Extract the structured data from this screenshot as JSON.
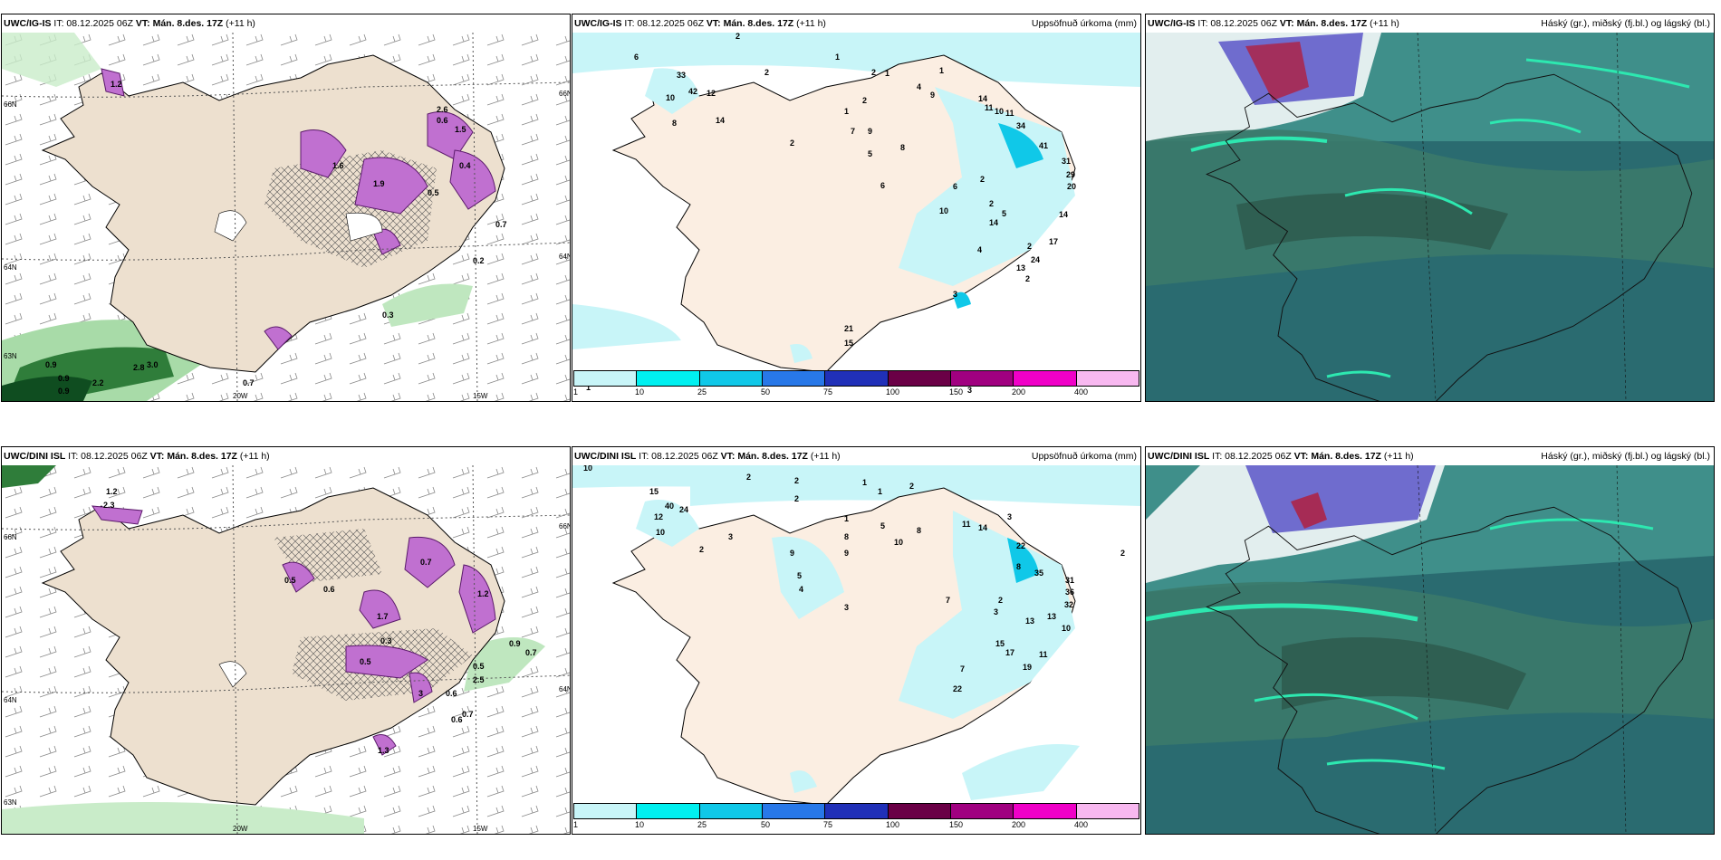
{
  "panels": [
    {
      "model": "UWC/IG-IS",
      "it": "IT: 08.12.2025 06Z",
      "vt_label": "VT:",
      "vt": "Mán. 8.des. 17Z",
      "lead": "(+11 h)",
      "right": ""
    },
    {
      "model": "UWC/IG-IS",
      "it": "IT: 08.12.2025 06Z",
      "vt_label": "VT:",
      "vt": "Mán. 8.des. 17Z",
      "lead": "(+11 h)",
      "right": "Uppsöfnuð úrkoma (mm)"
    },
    {
      "model": "UWC/IG-IS",
      "it": "IT: 08.12.2025 06Z",
      "vt_label": "VT:",
      "vt": "Mán. 8.des. 17Z",
      "lead": "(+11 h)",
      "right": "Háský (gr.), miðský (fj.bl.) og lágský (bl.)"
    },
    {
      "model": "UWC/DINI ISL",
      "it": "IT: 08.12.2025 06Z",
      "vt_label": "VT:",
      "vt": "Mán. 8.des. 17Z",
      "lead": "(+11 h)",
      "right": ""
    },
    {
      "model": "UWC/DINI ISL",
      "it": "IT: 08.12.2025 06Z",
      "vt_label": "VT:",
      "vt": "Mán. 8.des. 17Z",
      "lead": "(+11 h)",
      "right": "Uppsöfnuð úrkoma (mm)"
    },
    {
      "model": "UWC/DINI ISL",
      "it": "IT: 08.12.2025 06Z",
      "vt_label": "VT:",
      "vt": "Mán. 8.des. 17Z",
      "lead": "(+11 h)",
      "right": "Háský (gr.), miðský (fj.bl.) og lágský (bl.)"
    }
  ],
  "axes": {
    "lon_labels": [
      "20W",
      "15W"
    ],
    "lat_labels_left": [
      "66N",
      "64N",
      "63N"
    ],
    "lat_labels_right": [
      "66N",
      "64N"
    ]
  },
  "colorbar": {
    "ticks": [
      "1",
      "10",
      "25",
      "50",
      "75",
      "100",
      "150",
      "200",
      "400"
    ],
    "colors": [
      "#c8f5f8",
      "#00f0f0",
      "#10c8e8",
      "#2878e8",
      "#2030b8",
      "#6a0046",
      "#a00080",
      "#f000c8",
      "#f8b8f0"
    ]
  },
  "precip_labels_top": [
    "6",
    "2",
    "1",
    "1",
    "2",
    "2",
    "2",
    "1",
    "33",
    "42",
    "12",
    "10",
    "14",
    "8",
    "2",
    "1",
    "4",
    "7",
    "9",
    "5",
    "6",
    "8",
    "9",
    "14",
    "11",
    "10",
    "11",
    "34",
    "41",
    "31",
    "29",
    "20",
    "14",
    "17",
    "24",
    "13",
    "14",
    "2",
    "10",
    "6",
    "2",
    "2",
    "5",
    "4",
    "2",
    "3",
    "15",
    "21",
    "3",
    "1"
  ],
  "precip_labels_bottom": [
    "10",
    "2",
    "2",
    "1",
    "1",
    "2",
    "2",
    "15",
    "40",
    "24",
    "12",
    "10",
    "3",
    "2",
    "1",
    "8",
    "9",
    "5",
    "10",
    "8",
    "11",
    "14",
    "3",
    "22",
    "35",
    "31",
    "36",
    "32",
    "13",
    "10",
    "9",
    "5",
    "4",
    "7",
    "2",
    "8",
    "3",
    "7",
    "13",
    "11",
    "17",
    "19",
    "15",
    "22",
    "2",
    "3",
    "3"
  ],
  "snow_labels_top": [
    "0.9",
    "1.2",
    "0.9",
    "2.2",
    "2.8",
    "3.0",
    "0.9",
    "0.7",
    "1.6",
    "1.9",
    "0.5",
    "0.7",
    "0.6",
    "0.2",
    "0.3",
    "1.5",
    "2.6",
    "0.4"
  ],
  "snow_labels_bottom": [
    "1.2",
    "2.3",
    "0.5",
    "0.6",
    "0.7",
    "1.7",
    "0.3",
    "0.5",
    "0.9",
    "1.2",
    "0.7",
    "0.5",
    "0.6",
    "2.5",
    "0.7",
    "0.6",
    "1.3",
    "3"
  ]
}
